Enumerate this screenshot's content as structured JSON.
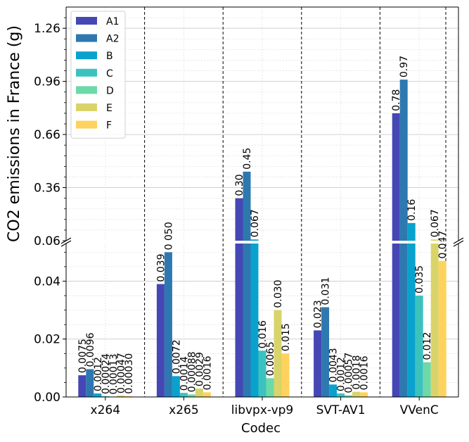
{
  "chart_data": {
    "type": "bar",
    "ylabel": "CO2 emissions in France (g)",
    "xlabel": "Codec",
    "categories": [
      "x264",
      "x265",
      "libvpx-vp9",
      "SVT-AV1",
      "VVenC"
    ],
    "broken_axis": true,
    "ylim_lower": [
      0,
      0.053
    ],
    "ylim_upper": [
      0.06,
      1.38
    ],
    "yticks_lower": [
      "0.00",
      "0.02",
      "0.04"
    ],
    "yticks_upper": [
      "0.06",
      "0.36",
      "0.66",
      "0.96",
      "1.26"
    ],
    "grid": true,
    "legend_position": "top-left",
    "series": [
      {
        "name": "A1",
        "color": "#4547b5",
        "values": [
          0.0075,
          0.039,
          0.3,
          0.023,
          0.78
        ],
        "labels": [
          "0.0075",
          "0.039",
          "0.30",
          "0.023",
          "0.78"
        ]
      },
      {
        "name": "A2",
        "color": "#2e78b0",
        "values": [
          0.0096,
          0.05,
          0.45,
          0.031,
          0.97
        ],
        "labels": [
          "0.0096",
          "0.050",
          "0.45",
          "0.031",
          "0.97"
        ]
      },
      {
        "name": "B",
        "color": "#08a2cd",
        "values": [
          0.0012,
          0.0072,
          0.067,
          0.0043,
          0.16
        ],
        "labels": [
          "0.0012",
          "0.0072",
          "0.067",
          "0.0043",
          "0.16"
        ]
      },
      {
        "name": "C",
        "color": "#3cc2be",
        "values": [
          0.00024,
          0.0014,
          0.016,
          0.0012,
          0.035
        ],
        "labels": [
          "0.00024",
          "0.0014",
          "0.016",
          "0.0012",
          "0.035"
        ]
      },
      {
        "name": "D",
        "color": "#6dd9a8",
        "values": [
          0.00013,
          0.00088,
          0.0065,
          0.00057,
          0.012
        ],
        "labels": [
          "0.00013",
          "0.00088",
          "0.0065",
          "0.00057",
          "0.012"
        ]
      },
      {
        "name": "E",
        "color": "#d9d46a",
        "values": [
          0.00047,
          0.0029,
          0.03,
          0.0018,
          0.067
        ],
        "labels": [
          "0.00047",
          "0.0029",
          "0.030",
          "0.0018",
          "0.067"
        ]
      },
      {
        "name": "F",
        "color": "#fed25d",
        "values": [
          0.0003,
          0.0016,
          0.015,
          0.0016,
          0.047
        ],
        "labels": [
          "0.00030",
          "0.0016",
          "0.015",
          "0.0016",
          "0.047"
        ]
      }
    ]
  }
}
